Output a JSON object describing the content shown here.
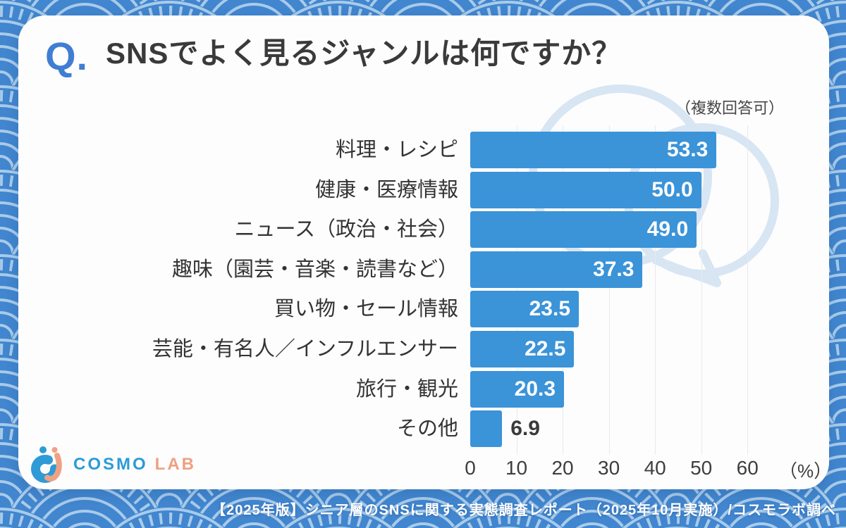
{
  "question": {
    "prefix": "Q.",
    "title": "SNSでよく見るジャンルは何ですか？"
  },
  "note": "（複数回答可）",
  "chart_data": {
    "type": "bar",
    "orientation": "horizontal",
    "title": "SNSでよく見るジャンルは何ですか？",
    "categories": [
      "料理・レシピ",
      "健康・医療情報",
      "ニュース（政治・社会）",
      "趣味（園芸・音楽・読書など）",
      "買い物・セール情報",
      "芸能・有名人／インフルエンサー",
      "旅行・観光",
      "その他"
    ],
    "values": [
      53.3,
      50.0,
      49.0,
      37.3,
      23.5,
      22.5,
      20.3,
      6.9
    ],
    "x_ticks": [
      0,
      10,
      20,
      30,
      40,
      50,
      60
    ],
    "xlim": [
      0,
      65
    ],
    "axis_unit_label": "（%）",
    "grid": true,
    "legend": "none",
    "bar_color": "#3b93d8",
    "value_label_color_inside": "#ffffff",
    "value_label_color_outside": "#3a3a3a"
  },
  "logo": {
    "cosmo": "COSMO",
    "lab": "LAB"
  },
  "footer": "【2025年版】シニア層のSNSに関する実態調査レポート（2025年10月実施）/コスモラボ調べ",
  "colors": {
    "background_blue": "#4186cf",
    "pattern_line": "#a9cbe9",
    "card": "#fdfdfe",
    "accent_blue": "#3f7ed2",
    "bar_blue": "#3b93d8",
    "watermark_blue": "#d8e5f3",
    "logo_blue": "#2b9bd7",
    "logo_orange": "#efa083"
  }
}
